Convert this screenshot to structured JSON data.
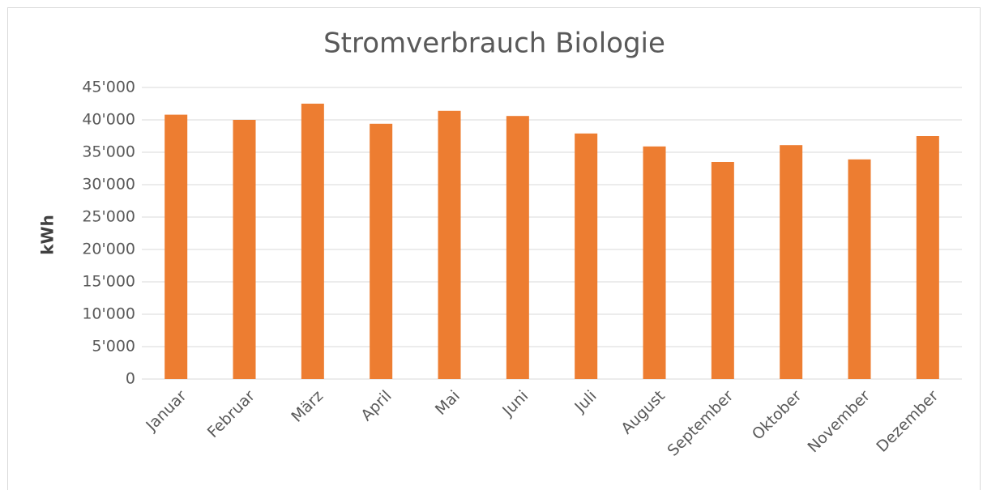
{
  "chart_data": {
    "type": "bar",
    "title": "Stromverbrauch Biologie",
    "y_label": "kWh",
    "categories": [
      "Januar",
      "Februar",
      "März",
      "April",
      "Mai",
      "Juni",
      "Juli",
      "August",
      "September",
      "Oktober",
      "November",
      "Dezember"
    ],
    "values": [
      40800,
      40000,
      42500,
      39400,
      41400,
      40600,
      37900,
      35900,
      33500,
      36100,
      33900,
      37500
    ],
    "color": "#ed7d31",
    "ylim": [
      0,
      45000
    ],
    "yticks": [
      0,
      {
        "value": 5000,
        "label": "5'000"
      },
      {
        "value": 10000,
        "label": "10'000"
      },
      {
        "value": 15000,
        "label": "15'000"
      },
      {
        "value": 20000,
        "label": "20'000"
      },
      {
        "value": 25000,
        "label": "25'000"
      },
      {
        "value": 30000,
        "label": "30'000"
      },
      {
        "value": 35000,
        "label": "35'000"
      },
      {
        "value": 40000,
        "label": "40'000"
      },
      {
        "value": 45000,
        "label": "45'000"
      }
    ],
    "grid": true
  }
}
